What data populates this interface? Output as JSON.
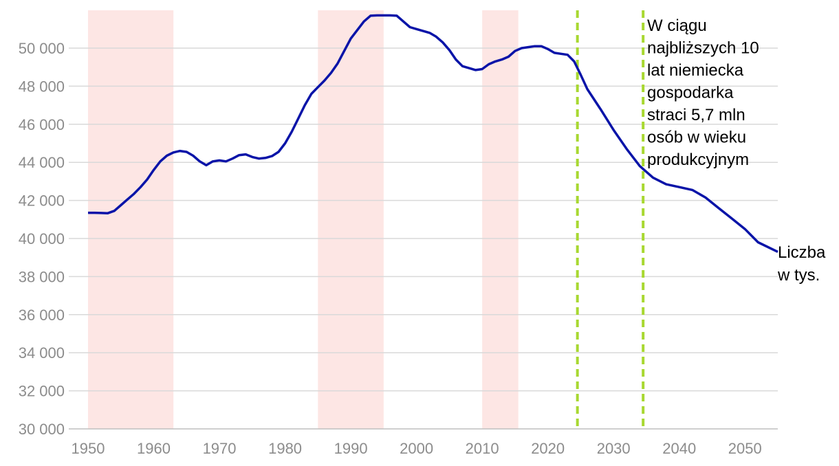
{
  "chart_data": {
    "type": "line",
    "title": "",
    "xlabel": "",
    "ylabel": "",
    "xlim": [
      1950,
      2055
    ],
    "ylim": [
      30000,
      52000
    ],
    "x_ticks": [
      "1950",
      "1960",
      "1970",
      "1980",
      "1990",
      "2000",
      "2010",
      "2020",
      "2030",
      "2040",
      "2050"
    ],
    "y_ticks": [
      "30 000",
      "32 000",
      "34 000",
      "36 000",
      "38 000",
      "40 000",
      "42 000",
      "44 000",
      "46 000",
      "48 000",
      "50 000"
    ],
    "grid": "horizontal",
    "shaded_periods": [
      [
        1950,
        1963
      ],
      [
        1985,
        1995
      ],
      [
        2010,
        2015.5
      ]
    ],
    "vertical_lines": [
      2024.5,
      2034.5
    ],
    "series": [
      {
        "x": [
          1950,
          1951,
          1952,
          1953,
          1954,
          1955,
          1956,
          1957,
          1958,
          1959,
          1960,
          1961,
          1962,
          1963,
          1964,
          1965,
          1966,
          1967,
          1968,
          1969,
          1970,
          1971,
          1972,
          1973,
          1974,
          1975,
          1976,
          1977,
          1978,
          1979,
          1980,
          1981,
          1982,
          1983,
          1984,
          1985,
          1986,
          1987,
          1988,
          1989,
          1990,
          1991,
          1992,
          1993,
          1994,
          1995,
          1996,
          1997,
          1998,
          1999,
          2000,
          2001,
          2002,
          2003,
          2004,
          2005,
          2006,
          2007,
          2008,
          2009,
          2010,
          2011,
          2012,
          2013,
          2014,
          2015,
          2016,
          2017,
          2018,
          2019,
          2020,
          2021,
          2022,
          2023,
          2024,
          2025,
          2026,
          2028,
          2030,
          2032,
          2034,
          2036,
          2038,
          2040,
          2042,
          2044,
          2046,
          2048,
          2050,
          2052,
          2055
        ],
        "values": [
          41350,
          41350,
          41340,
          41330,
          41450,
          41750,
          42050,
          42350,
          42700,
          43100,
          43600,
          44050,
          44350,
          44520,
          44600,
          44550,
          44350,
          44050,
          43850,
          44050,
          44100,
          44050,
          44200,
          44380,
          44420,
          44280,
          44200,
          44230,
          44330,
          44550,
          45000,
          45600,
          46300,
          47000,
          47600,
          47950,
          48300,
          48700,
          49200,
          49850,
          50500,
          50950,
          51400,
          51700,
          51720,
          51720,
          51720,
          51700,
          51400,
          51100,
          51000,
          50900,
          50800,
          50600,
          50300,
          49900,
          49400,
          49050,
          48950,
          48850,
          48900,
          49150,
          49300,
          49400,
          49550,
          49850,
          50000,
          50050,
          50100,
          50100,
          49950,
          49750,
          49700,
          49650,
          49300,
          48600,
          47850,
          46800,
          45700,
          44700,
          43800,
          43200,
          42850,
          42700,
          42550,
          42150,
          41600,
          41050,
          40500,
          39800,
          39300
        ]
      }
    ],
    "annotations": {
      "forecast_note": [
        "W ciągu",
        "najbliższych 10",
        "lat niemiecka",
        "gospodarka",
        "straci 5,7 mln",
        "osób w wieku",
        "produkcyjnym"
      ],
      "end_label": [
        "Liczba",
        "w tys."
      ]
    },
    "colors": {
      "line": "#0a14a8",
      "shade": "#fde6e4",
      "vertical_line": "#a8d831",
      "grid": "#d9d9d9",
      "tick_text": "#8c8c8c",
      "axis": "#bfbfbf"
    }
  }
}
